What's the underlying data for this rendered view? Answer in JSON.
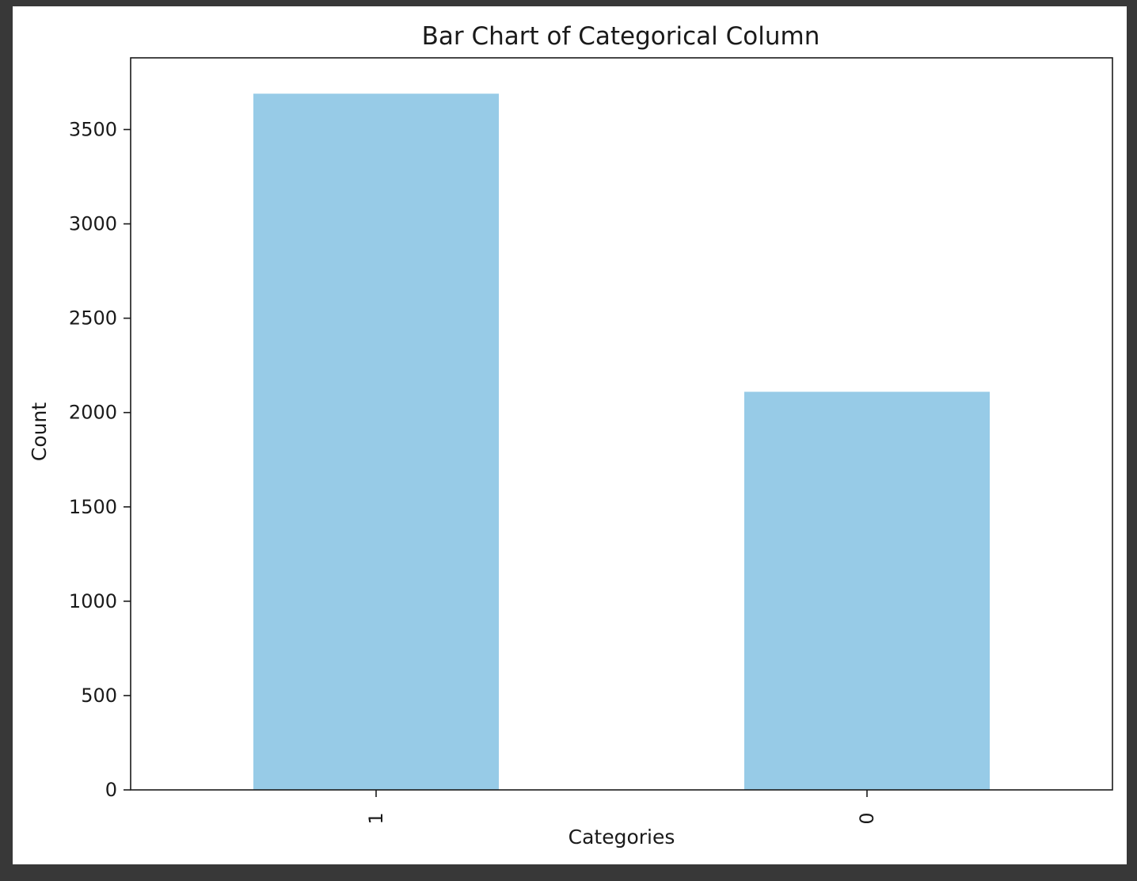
{
  "chart_data": {
    "type": "bar",
    "title": "Bar Chart of Categorical Column",
    "xlabel": "Categories",
    "ylabel": "Count",
    "categories": [
      "1",
      "0"
    ],
    "values": [
      3690,
      2110
    ],
    "ylim": [
      0,
      3880
    ],
    "yticks": [
      0,
      500,
      1000,
      1500,
      2000,
      2500,
      3000,
      3500
    ],
    "xtick_rotation": 90,
    "bar_color": "#97cbe7",
    "grid": false,
    "legend": "none"
  }
}
